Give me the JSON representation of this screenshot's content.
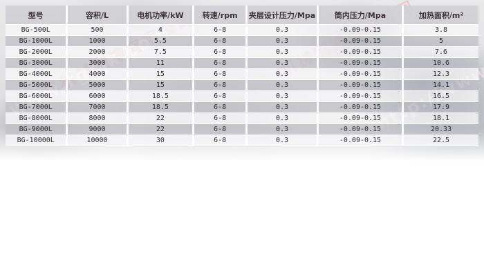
{
  "table": {
    "headers": [
      "型号",
      "容积/L",
      "电机功率/kW",
      "转速/rpm",
      "夹层设计压力/Mpa",
      "筒内压力/Mpa",
      "加热面积/m²"
    ],
    "rows": [
      [
        "BG-500L",
        "500",
        "4",
        "6-8",
        "0.3",
        "-0.09-0.15",
        "3.8"
      ],
      [
        "BG-1000L",
        "1000",
        "5.5",
        "6-8",
        "0.3",
        "-0.09-0.15",
        "5"
      ],
      [
        "BG-2000L",
        "2000",
        "7.5",
        "6-8",
        "0.3",
        "-0.09-0.15",
        "7.6"
      ],
      [
        "BG-3000L",
        "3000",
        "11",
        "6-8",
        "0.3",
        "-0.09-0.15",
        "10.6"
      ],
      [
        "BG-4000L",
        "4000",
        "15",
        "6-8",
        "0.3",
        "-0.09-0.15",
        "12.3"
      ],
      [
        "BG-5000L",
        "5000",
        "15",
        "6-8",
        "0.3",
        "-0.09-0.15",
        "14.1"
      ],
      [
        "BG-6000L",
        "6000",
        "18.5",
        "6-8",
        "0.3",
        "-0.09-0.15",
        "16.5"
      ],
      [
        "BG-7000L",
        "7000",
        "18.5",
        "6-8",
        "0.3",
        "-0.09-0.15",
        "17.9"
      ],
      [
        "BG-8000L",
        "8000",
        "22",
        "6-8",
        "0.3",
        "-0.09-0.15",
        "18.1"
      ],
      [
        "BG-9000L",
        "9000",
        "22",
        "6-8",
        "0.3",
        "-0.09-0.15",
        "20.33"
      ],
      [
        "BG-10000L",
        "10000",
        "30",
        "6-8",
        "0.3",
        "-0.09-0.15",
        "22.5"
      ]
    ]
  },
  "watermarks": {
    "url_big": "www.rgcjx.com",
    "company_left": "成机械制造有限公司",
    "url_right": "http://www",
    "company_right": "机械制造有限公司"
  },
  "colors": {
    "header_bg": "#d0cfd3",
    "row_light": "#f8f7f8",
    "row_stripe": "#c0c0c6",
    "watermark_pink": "#de9191",
    "watermark_white": "#ffffff",
    "text": "#2a2a2c"
  }
}
